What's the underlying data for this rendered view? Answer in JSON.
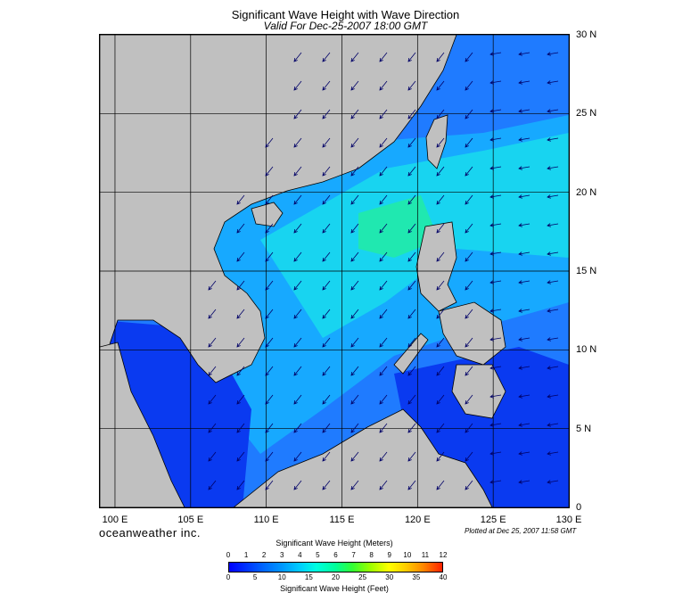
{
  "header": {
    "title": "Significant Wave Height with Wave Direction",
    "subtitle": "Valid For Dec-25-2007 18:00 GMT"
  },
  "map": {
    "lon_range": [
      99,
      130
    ],
    "lat_range": [
      0,
      30
    ],
    "lat_labels": [
      "30 N",
      "25 N",
      "20 N",
      "15 N",
      "10 N",
      "5 N",
      "0"
    ],
    "lon_labels": [
      "100 E",
      "105 E",
      "110 E",
      "115 E",
      "120 E",
      "125 E",
      "130 E"
    ],
    "land_color": "#c0c0c0",
    "grid_color": "#000000",
    "arrow_color": "#000066"
  },
  "footer": {
    "brand": "oceanweather inc.",
    "plotted": "Plotted at Dec 25, 2007 11:58 GMT"
  },
  "legend": {
    "meters_title": "Significant Wave Height (Meters)",
    "feet_title": "Significant Wave Height (Feet)",
    "meters_ticks": [
      "0",
      "1",
      "2",
      "3",
      "4",
      "5",
      "6",
      "7",
      "8",
      "9",
      "10",
      "11",
      "12"
    ],
    "feet_ticks": [
      "0",
      "5",
      "10",
      "15",
      "20",
      "25",
      "30",
      "35",
      "40"
    ]
  }
}
